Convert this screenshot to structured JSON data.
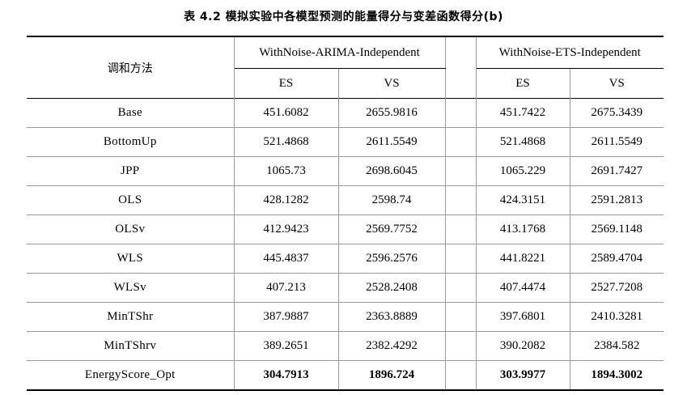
{
  "caption": "表  4.2  模拟实验中各模型预测的能量得分与变差函数得分(b)",
  "table": {
    "method_header": "调和方法",
    "groups": [
      {
        "name": "WithNoise-ARIMA-Independent",
        "metrics": [
          "ES",
          "VS"
        ]
      },
      {
        "name": "WithNoise-ETS-Independent",
        "metrics": [
          "ES",
          "VS"
        ]
      }
    ],
    "rows": [
      {
        "method": "Base",
        "values": [
          "451.6082",
          "2655.9816",
          "451.7422",
          "2675.3439"
        ]
      },
      {
        "method": "BottomUp",
        "values": [
          "521.4868",
          "2611.5549",
          "521.4868",
          "2611.5549"
        ]
      },
      {
        "method": "JPP",
        "values": [
          "1065.73",
          "2698.6045",
          "1065.229",
          "2691.7427"
        ]
      },
      {
        "method": "OLS",
        "values": [
          "428.1282",
          "2598.74",
          "424.3151",
          "2591.2813"
        ]
      },
      {
        "method": "OLSv",
        "values": [
          "412.9423",
          "2569.7752",
          "413.1768",
          "2569.1148"
        ]
      },
      {
        "method": "WLS",
        "values": [
          "445.4837",
          "2596.2576",
          "441.8221",
          "2589.4704"
        ]
      },
      {
        "method": "WLSv",
        "values": [
          "407.213",
          "2528.2408",
          "407.4474",
          "2527.7208"
        ]
      },
      {
        "method": "MinTShr",
        "values": [
          "387.9887",
          "2363.8889",
          "397.6801",
          "2410.3281"
        ]
      },
      {
        "method": "MinTShrv",
        "values": [
          "389.2651",
          "2382.4292",
          "390.2082",
          "2384.582"
        ]
      },
      {
        "method": "EnergyScore_Opt",
        "values": [
          "304.7913",
          "1896.724",
          "303.9977",
          "1894.3002"
        ]
      }
    ]
  }
}
